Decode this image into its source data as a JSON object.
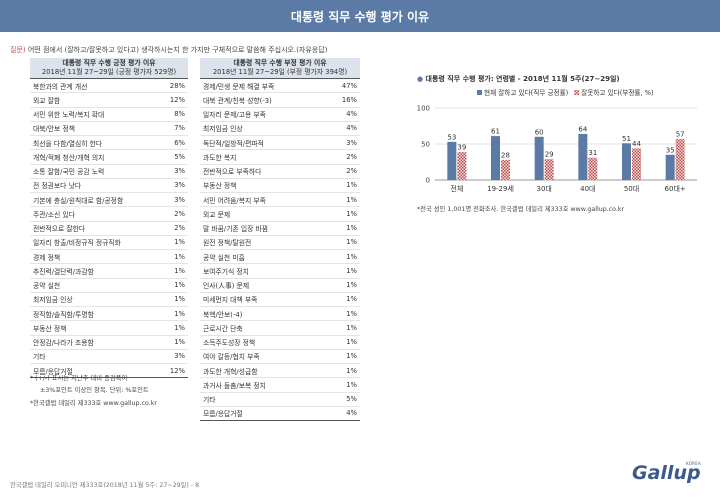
{
  "header": {
    "title": "대통령 직무 수행 평가 이유"
  },
  "question": {
    "label": "질문)",
    "text": " 어떤 점에서 (잘하고/잘못하고 있다고) 생각하시는지 한 가지만 구체적으로 말씀해 주십시오.(자유응답)"
  },
  "positive_table": {
    "title": "대통령 직무 수행 긍정 평가 이유",
    "subtitle": "2018년 11월 27~29일 (긍정 평가자 529명)",
    "rows": [
      {
        "label": "북한과의 관계 개선",
        "value": "28%"
      },
      {
        "label": "외교 잘함",
        "value": "12%"
      },
      {
        "label": "서민 위한 노력/복지 확대",
        "value": "8%"
      },
      {
        "label": "대북/안보 정책",
        "value": "7%"
      },
      {
        "label": "최선을 다함/열심히 한다",
        "value": "6%"
      },
      {
        "label": "개혁/적폐 청산/개혁 의지",
        "value": "5%"
      },
      {
        "label": "소통 잘함/국민 공감 노력",
        "value": "3%"
      },
      {
        "label": "전 정권보다 낫다",
        "value": "3%"
      },
      {
        "label": "기본에 충실/원칙대로 함/공정함",
        "value": "3%"
      },
      {
        "label": "주관/소신 있다",
        "value": "2%"
      },
      {
        "label": "전반적으로 잘한다",
        "value": "2%"
      },
      {
        "label": "일자리 창출/비정규직 정규직화",
        "value": "1%"
      },
      {
        "label": "경제 정책",
        "value": "1%"
      },
      {
        "label": "추진력/결단력/과감함",
        "value": "1%"
      },
      {
        "label": "공약 실천",
        "value": "1%"
      },
      {
        "label": "최저임금 인상",
        "value": "1%"
      },
      {
        "label": "정직함/솔직함/투명함",
        "value": "1%"
      },
      {
        "label": "부동산 정책",
        "value": "1%"
      },
      {
        "label": "안정감/나라가 조용함",
        "value": "1%"
      },
      {
        "label": "기타",
        "value": "3%"
      },
      {
        "label": "모름/응답거절",
        "value": "12%"
      }
    ]
  },
  "negative_table": {
    "title": "대통령 직무 수행 부정 평가 이유",
    "subtitle": "2018년 11월 27~29일 (부정 평가자 394명)",
    "rows": [
      {
        "label": "경제/민생 문제 해결 부족",
        "value": "47%"
      },
      {
        "label": "대북 관계/친북 성향(-3)",
        "value": "16%"
      },
      {
        "label": "일자리 문제/고용 부족",
        "value": "4%"
      },
      {
        "label": "최저임금 인상",
        "value": "4%"
      },
      {
        "label": "독단적/일방적/편파적",
        "value": "3%"
      },
      {
        "label": "과도한 복지",
        "value": "2%"
      },
      {
        "label": "전반적으로 부족하다",
        "value": "2%"
      },
      {
        "label": "부동산 정책",
        "value": "1%"
      },
      {
        "label": "서민 어려움/복지 부족",
        "value": "1%"
      },
      {
        "label": "외교 문제",
        "value": "1%"
      },
      {
        "label": "말 바꿈/기존 입장 바뀜",
        "value": "1%"
      },
      {
        "label": "원전 정책/탈원전",
        "value": "1%"
      },
      {
        "label": "공약 실천 미흡",
        "value": "1%"
      },
      {
        "label": "보여주기식 정치",
        "value": "1%"
      },
      {
        "label": "인사(人事) 문제",
        "value": "1%"
      },
      {
        "label": "미세먼지 대책 부족",
        "value": "1%"
      },
      {
        "label": "북핵/안보(-4)",
        "value": "1%"
      },
      {
        "label": "근로시간 단축",
        "value": "1%"
      },
      {
        "label": "소득주도성장 정책",
        "value": "1%"
      },
      {
        "label": "여야 갈등/협치 부족",
        "value": "1%"
      },
      {
        "label": "과도한 개혁/성급함",
        "value": "1%"
      },
      {
        "label": "과거사 들춤/보복 정치",
        "value": "1%"
      },
      {
        "label": "기타",
        "value": "5%"
      },
      {
        "label": "모름/응답거절",
        "value": "4%"
      }
    ]
  },
  "notes": {
    "line1": "* (+/-) 표시는 지난주 대비 증감폭이",
    "line2": "±3%포인트 이상인 항목. 단위: %포인트",
    "line3": "*한국갤럽 데일리 제333호 www.gallup.co.kr"
  },
  "chart_source": "*전국 성인 1,001명 전화조사. 한국갤럽 데일리 제333호 www.gallup.co.kr",
  "footer": "한국갤럽 데일리 오피니언 제333호(2018년 11월 5주: 27~29일) - 8",
  "logo": {
    "text": "Gallup",
    "korea": "KOREA"
  },
  "chart_data": {
    "type": "bar",
    "title": "대통령 직무 수행 평가: 연령별 - 2018년 11월 5주(27~29일)",
    "categories": [
      "전체",
      "19-29세",
      "30대",
      "40대",
      "50대",
      "60대+"
    ],
    "series": [
      {
        "name": "현재 잘하고 있다(직무 긍정률)",
        "values": [
          53,
          61,
          60,
          64,
          51,
          35
        ],
        "color": "#5b7aa6"
      },
      {
        "name": "잘못하고 있다(부정률, %)",
        "values": [
          39,
          28,
          29,
          31,
          44,
          57
        ],
        "color": "#c0504d",
        "pattern": "checkered"
      }
    ],
    "ylim": [
      0,
      100
    ],
    "yticks": [
      0,
      50,
      100
    ],
    "legend": "top",
    "grid": true
  }
}
